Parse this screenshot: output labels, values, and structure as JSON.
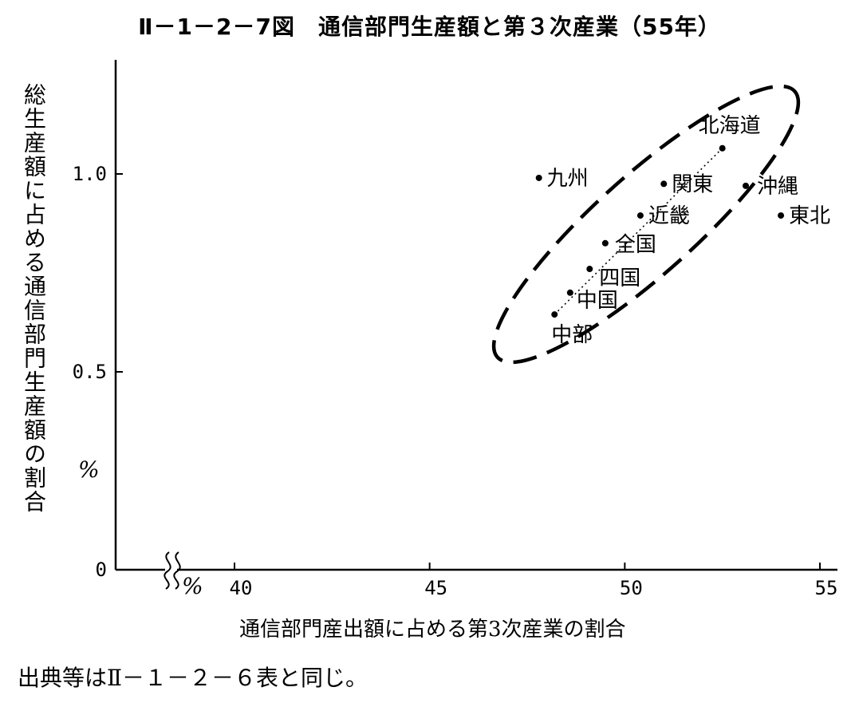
{
  "title": "Ⅱ－1－2－7図　通信部門生産額と第３次産業（55年）",
  "source_note": "出典等はⅡ－１－２－６表と同じ。",
  "chart_data": {
    "type": "scatter",
    "title": "Ⅱ－1－2－7図　通信部門生産額と第３次産業（55年）",
    "xlabel": "通信部門産出額に占める第3次産業の割合",
    "ylabel": "総生産額に占める通信部門生産額の割合",
    "x_unit": "%",
    "y_unit": "%",
    "xlim": [
      37,
      55.3
    ],
    "ylim": [
      0,
      1.3
    ],
    "x_axis_break": true,
    "x_ticks": [
      {
        "value": 40,
        "label": "40"
      },
      {
        "value": 45,
        "label": "45"
      },
      {
        "value": 50,
        "label": "50"
      },
      {
        "value": 55,
        "label": "55"
      }
    ],
    "y_ticks": [
      {
        "value": 0,
        "label": "0"
      },
      {
        "value": 0.5,
        "label": "0.5"
      },
      {
        "value": 1.0,
        "label": "1.0"
      }
    ],
    "grid": false,
    "points": [
      {
        "label": "北海道",
        "x": 52.5,
        "y": 1.065
      },
      {
        "label": "九州",
        "x": 47.8,
        "y": 0.99
      },
      {
        "label": "関東",
        "x": 51.0,
        "y": 0.975
      },
      {
        "label": "沖縄",
        "x": 53.1,
        "y": 0.97
      },
      {
        "label": "東北",
        "x": 54.0,
        "y": 0.895
      },
      {
        "label": "近畿",
        "x": 50.4,
        "y": 0.895
      },
      {
        "label": "全国",
        "x": 49.5,
        "y": 0.825
      },
      {
        "label": "四国",
        "x": 49.1,
        "y": 0.76
      },
      {
        "label": "中国",
        "x": 48.6,
        "y": 0.7
      },
      {
        "label": "中部",
        "x": 48.2,
        "y": 0.645
      }
    ],
    "trend_line": [
      {
        "x": 48.2,
        "y": 0.645
      },
      {
        "x": 52.5,
        "y": 1.065
      }
    ],
    "cluster_ellipse": true
  }
}
